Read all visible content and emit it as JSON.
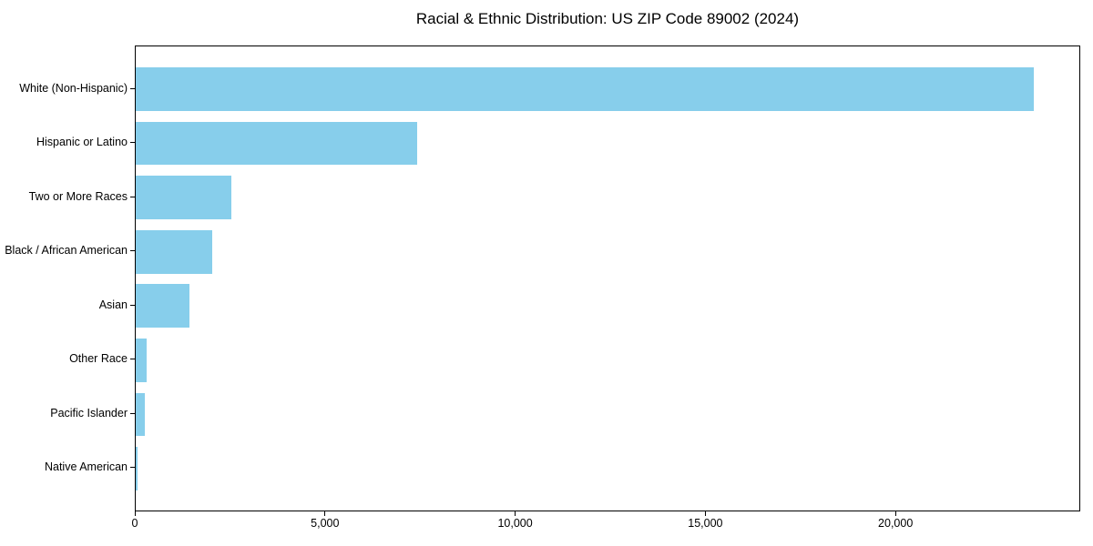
{
  "chart_data": {
    "type": "bar",
    "orientation": "horizontal",
    "title": "Racial & Ethnic Distribution: US ZIP Code 89002 (2024)",
    "categories": [
      "White (Non-Hispanic)",
      "Hispanic or Latino",
      "Two or More Races",
      "Black / African American",
      "Asian",
      "Other Race",
      "Pacific Islander",
      "Native American"
    ],
    "values": [
      23650,
      7410,
      2530,
      2015,
      1405,
      290,
      245,
      40
    ],
    "xlabel": "",
    "ylabel": "",
    "xlim": [
      0,
      24857
    ],
    "x_ticks": [
      0,
      5000,
      10000,
      15000,
      20000
    ],
    "x_tick_labels": [
      "0",
      "5,000",
      "10,000",
      "15,000",
      "20,000"
    ],
    "bar_color": "#87CEEB",
    "axis_color": "#000000",
    "text_color": "#000000",
    "background": "#FFFFFF",
    "grid": false,
    "legend": null
  }
}
